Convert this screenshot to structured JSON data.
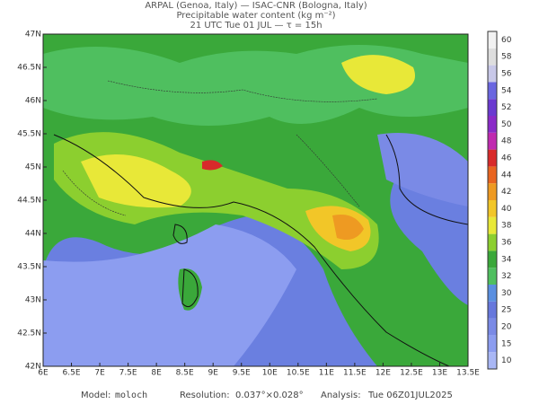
{
  "header": {
    "line1": "ARPAL (Genoa, Italy)  —  ISAC-CNR (Bologna, Italy)",
    "line2": "Precipitable water content (kg m⁻²)",
    "line3": "21 UTC Tue 01 JUL  —  τ = 15h"
  },
  "map": {
    "xticks": [
      "6E",
      "6.5E",
      "7E",
      "7.5E",
      "8E",
      "8.5E",
      "9E",
      "9.5E",
      "10E",
      "10.5E",
      "11E",
      "11.5E",
      "12E",
      "12.5E",
      "13E",
      "13.5E"
    ],
    "yticks": [
      "47N",
      "46.5N",
      "46N",
      "45.5N",
      "45N",
      "44.5N",
      "44N",
      "43.5N",
      "43N",
      "42.5N",
      "42N"
    ]
  },
  "colorbar": {
    "levels": [
      10,
      15,
      20,
      25,
      30,
      32,
      34,
      36,
      38,
      40,
      42,
      44,
      46,
      48,
      50,
      52,
      54,
      56,
      58,
      60
    ],
    "colors": [
      "#a9b7f5",
      "#8c9df0",
      "#7a8ae6",
      "#6778dc",
      "#5a8fe0",
      "#4fbf5f",
      "#3aa83a",
      "#8ccf2f",
      "#e8e838",
      "#f2c628",
      "#ee9a22",
      "#e86420",
      "#d82a2a",
      "#c02ab0",
      "#8a2ac8",
      "#6a3ad0",
      "#6a66e0",
      "#c8c8e8",
      "#dedede",
      "#f2f2f2"
    ]
  },
  "footer": {
    "model_label": "Model:",
    "model": "moloch",
    "resolution_label": "Resolution:",
    "resolution": "0.037°×0.028°",
    "analysis_label": "Analysis:",
    "analysis": "Tue 06Z01JUL2025"
  }
}
